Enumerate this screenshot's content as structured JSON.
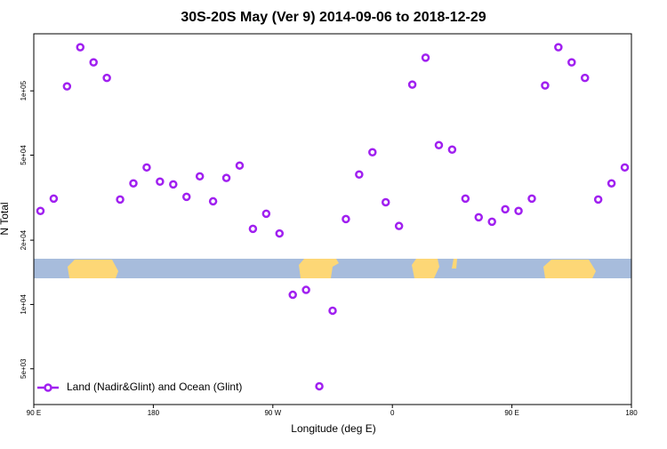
{
  "chart_data": {
    "type": "scatter",
    "title": "30S-20S May (Ver 9)   2014-09-06 to 2018-12-29",
    "x_label": "Longitude (deg E)",
    "y_label": "N Total",
    "log_y": true,
    "xlim": [
      90,
      540
    ],
    "ylim": [
      3400,
      185000
    ],
    "xticks": [
      {
        "value": 90,
        "label": "90 E"
      },
      {
        "value": 180,
        "label": "180"
      },
      {
        "value": 270,
        "label": "90 W"
      },
      {
        "value": 360,
        "label": "0"
      },
      {
        "value": 450,
        "label": "90 E"
      },
      {
        "value": 540,
        "label": "180"
      }
    ],
    "yticks": [
      {
        "value": 5000,
        "label": "5e+03"
      },
      {
        "value": 10000,
        "label": "1e+04"
      },
      {
        "value": 20000,
        "label": "2e+04"
      },
      {
        "value": 50000,
        "label": "5e+04"
      },
      {
        "value": 100000,
        "label": "1e+05"
      }
    ],
    "legend": "bottom-left",
    "series": [
      {
        "name": "Land (Nadir&Glint) and Ocean (Glint)",
        "color": "#a020f0",
        "x": [
          95,
          105,
          115,
          125,
          135,
          145,
          155,
          165,
          175,
          185,
          195,
          205,
          215,
          225,
          235,
          245,
          255,
          265,
          275,
          285,
          295,
          305,
          315,
          325,
          335,
          345,
          355,
          365,
          375,
          385,
          395,
          405,
          415,
          425,
          435,
          445,
          455,
          465,
          475,
          485,
          495,
          505,
          515,
          525,
          535
        ],
        "values": [
          27400,
          31300,
          105000,
          160000,
          136000,
          115000,
          31000,
          36900,
          43800,
          37600,
          36500,
          31900,
          39800,
          30400,
          39100,
          44700,
          22600,
          26600,
          21500,
          11100,
          11700,
          4140,
          9350,
          25100,
          40600,
          51600,
          30100,
          23300,
          107000,
          143000,
          55700,
          53100,
          31300,
          25600,
          24400,
          27900,
          27400,
          31300,
          106000,
          160000,
          136000,
          115000,
          31000,
          36900,
          43800
        ]
      }
    ]
  }
}
